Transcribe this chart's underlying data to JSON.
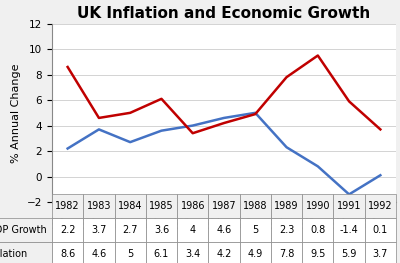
{
  "title": "UK Inflation and Economic Growth",
  "ylabel": "% Annual Change",
  "years": [
    1982,
    1983,
    1984,
    1985,
    1986,
    1987,
    1988,
    1989,
    1990,
    1991,
    1992
  ],
  "gdp_growth": [
    2.2,
    3.7,
    2.7,
    3.6,
    4.0,
    4.6,
    5.0,
    2.3,
    0.8,
    -1.4,
    0.1
  ],
  "inflation": [
    8.6,
    4.6,
    5.0,
    6.1,
    3.4,
    4.2,
    4.9,
    7.8,
    9.5,
    5.9,
    3.7
  ],
  "gdp_color": "#4472C4",
  "inflation_color": "#C00000",
  "ylim": [
    -2,
    12
  ],
  "yticks": [
    -2,
    0,
    2,
    4,
    6,
    8,
    10,
    12
  ],
  "background_color": "#F0F0F0",
  "plot_bg_color": "#FFFFFF",
  "table_gdp_label": "GDP Growth",
  "table_inf_label": "Inflation",
  "gdp_display": [
    "2.2",
    "3.7",
    "2.7",
    "3.6",
    "4",
    "4.6",
    "5",
    "2.3",
    "0.8",
    "-1.4",
    "0.1"
  ],
  "inf_display": [
    "8.6",
    "4.6",
    "5",
    "6.1",
    "3.4",
    "4.2",
    "4.9",
    "7.8",
    "9.5",
    "5.9",
    "3.7"
  ],
  "title_fontsize": 11,
  "axis_label_fontsize": 8,
  "tick_fontsize": 7.5,
  "table_fontsize": 7
}
